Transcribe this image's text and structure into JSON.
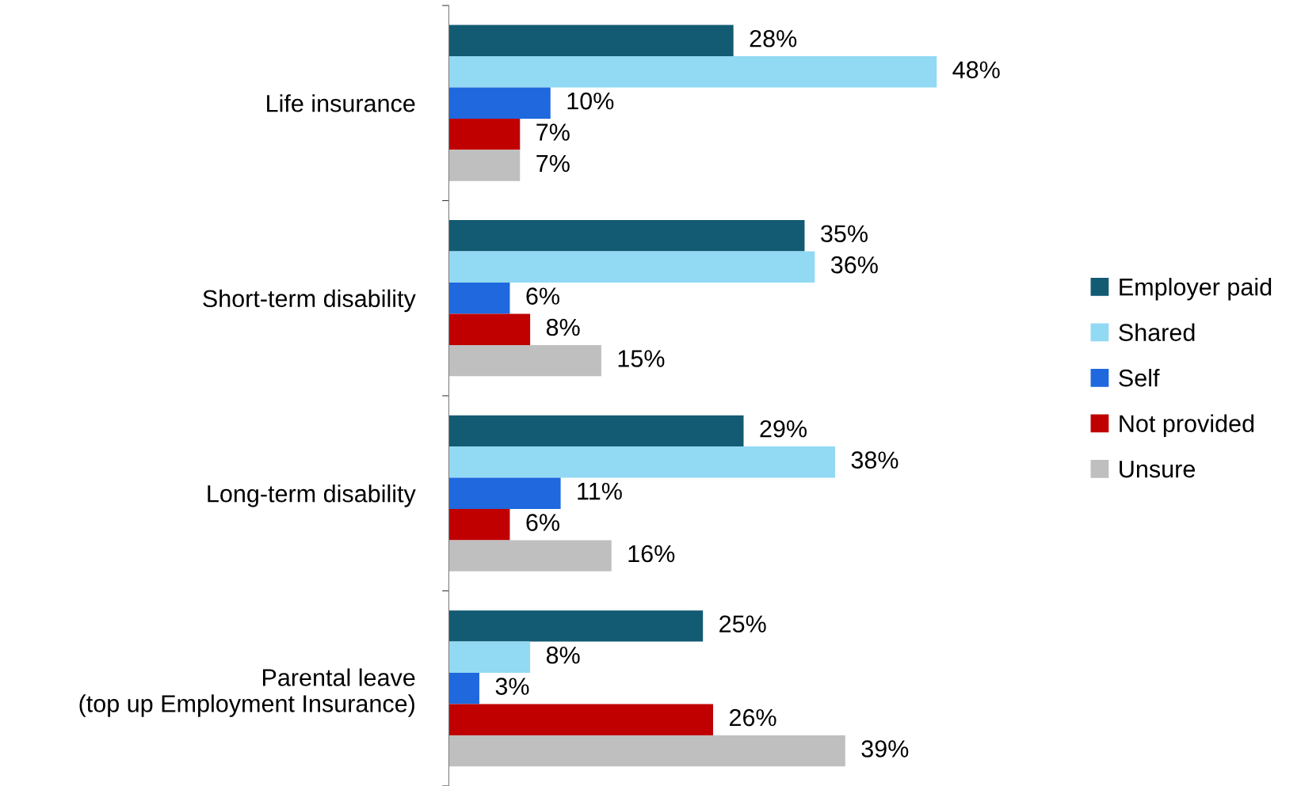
{
  "chart_data": {
    "type": "bar",
    "orientation": "horizontal",
    "categories": [
      "Life insurance",
      "Short-term disability",
      "Long-term disability",
      "Parental leave\n(top up Employment Insurance)"
    ],
    "series": [
      {
        "name": "Employer paid",
        "color": "#135a73",
        "values": [
          28,
          35,
          29,
          25
        ],
        "value_labels": [
          "28%",
          "35%",
          "29%",
          "25%"
        ]
      },
      {
        "name": "Shared",
        "color": "#92d9f4",
        "values": [
          48,
          36,
          38,
          8
        ],
        "value_labels": [
          "48%",
          "36%",
          "38%",
          "8%"
        ]
      },
      {
        "name": "Self",
        "color": "#1f68de",
        "values": [
          10,
          6,
          11,
          3
        ],
        "value_labels": [
          "10%",
          "6%",
          "11%",
          "3%"
        ]
      },
      {
        "name": "Not provided",
        "color": "#c00000",
        "values": [
          7,
          8,
          6,
          26
        ],
        "value_labels": [
          "7%",
          "8%",
          "6%",
          "26%"
        ]
      },
      {
        "name": "Unsure",
        "color": "#bfbfbf",
        "values": [
          7,
          15,
          16,
          39
        ],
        "value_labels": [
          "7%",
          "15%",
          "16%",
          "39%"
        ]
      }
    ],
    "legend": "right",
    "tick_labels": "y"
  }
}
